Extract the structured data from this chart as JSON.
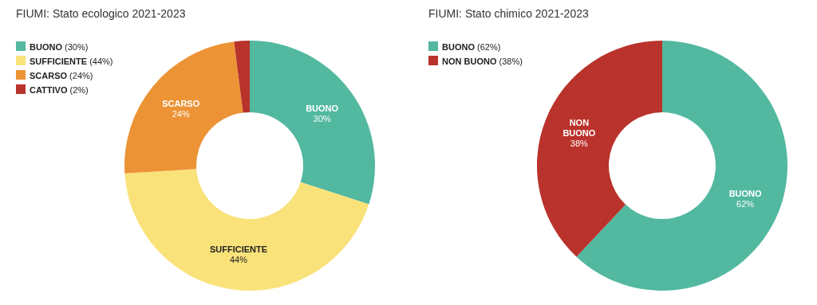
{
  "chart_data": [
    {
      "type": "donut",
      "title": "FIUMI: Stato ecologico 2021-2023",
      "categories": [
        "BUONO",
        "SUFFICIENTE",
        "SCARSO",
        "CATTIVO"
      ],
      "values": [
        30,
        44,
        24,
        2
      ],
      "colors": [
        "#52b8a0",
        "#f9e27a",
        "#ec9336",
        "#b9322b"
      ],
      "value_labels": [
        "30%",
        "44%",
        "24%",
        null
      ],
      "annotations": [
        "(30%)",
        "(44%)",
        "(24%)",
        "(2%)"
      ],
      "legend": "top left"
    },
    {
      "type": "donut",
      "title": "FIUMI: Stato chimico 2021-2023",
      "categories": [
        "BUONO",
        "NON BUONO"
      ],
      "values": [
        62,
        38
      ],
      "colors": [
        "#52b8a0",
        "#b9322b"
      ],
      "value_labels": [
        "62%",
        "38%"
      ],
      "annotations": [
        "(62%)",
        "(38%)"
      ],
      "legend": "top left"
    }
  ]
}
